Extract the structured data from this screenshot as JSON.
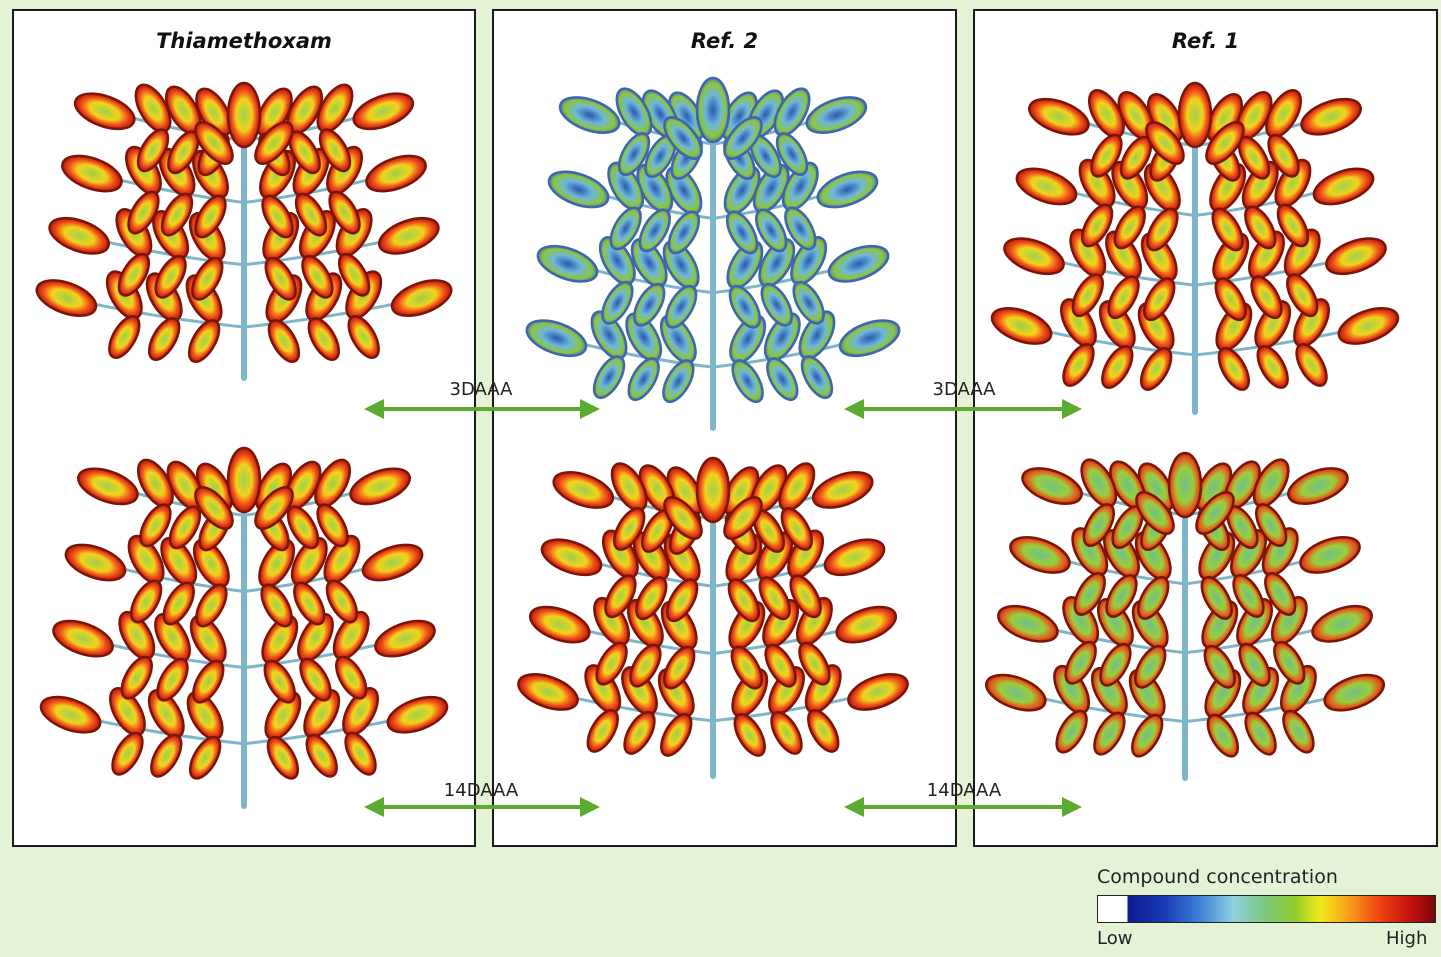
{
  "panels": [
    {
      "title": "Thiamethoxam"
    },
    {
      "title": "Ref. 2"
    },
    {
      "title": "Ref. 1"
    }
  ],
  "timings": {
    "early": "3DAAA",
    "late": "14DAAA"
  },
  "legend": {
    "title": "Compound concentration",
    "low": "Low",
    "high": "High"
  },
  "colors": {
    "background": "#e4f3d6",
    "arrow": "#5aab2f",
    "leaf_edge": "#8b1a0a",
    "leaf_hot": "#f0501a",
    "leaf_mid": "#8cc63e",
    "leaf_low": "#2f5fb0",
    "stem": "#7fb5c8"
  },
  "plants": [
    {
      "panel": "Thiamethoxam",
      "time": "3DAAA",
      "level": "high"
    },
    {
      "panel": "Thiamethoxam",
      "time": "14DAAA",
      "level": "high"
    },
    {
      "panel": "Ref. 2",
      "time": "3DAAA",
      "level": "low"
    },
    {
      "panel": "Ref. 2",
      "time": "14DAAA",
      "level": "high"
    },
    {
      "panel": "Ref. 1",
      "time": "3DAAA",
      "level": "high"
    },
    {
      "panel": "Ref. 1",
      "time": "14DAAA",
      "level": "medium"
    }
  ]
}
